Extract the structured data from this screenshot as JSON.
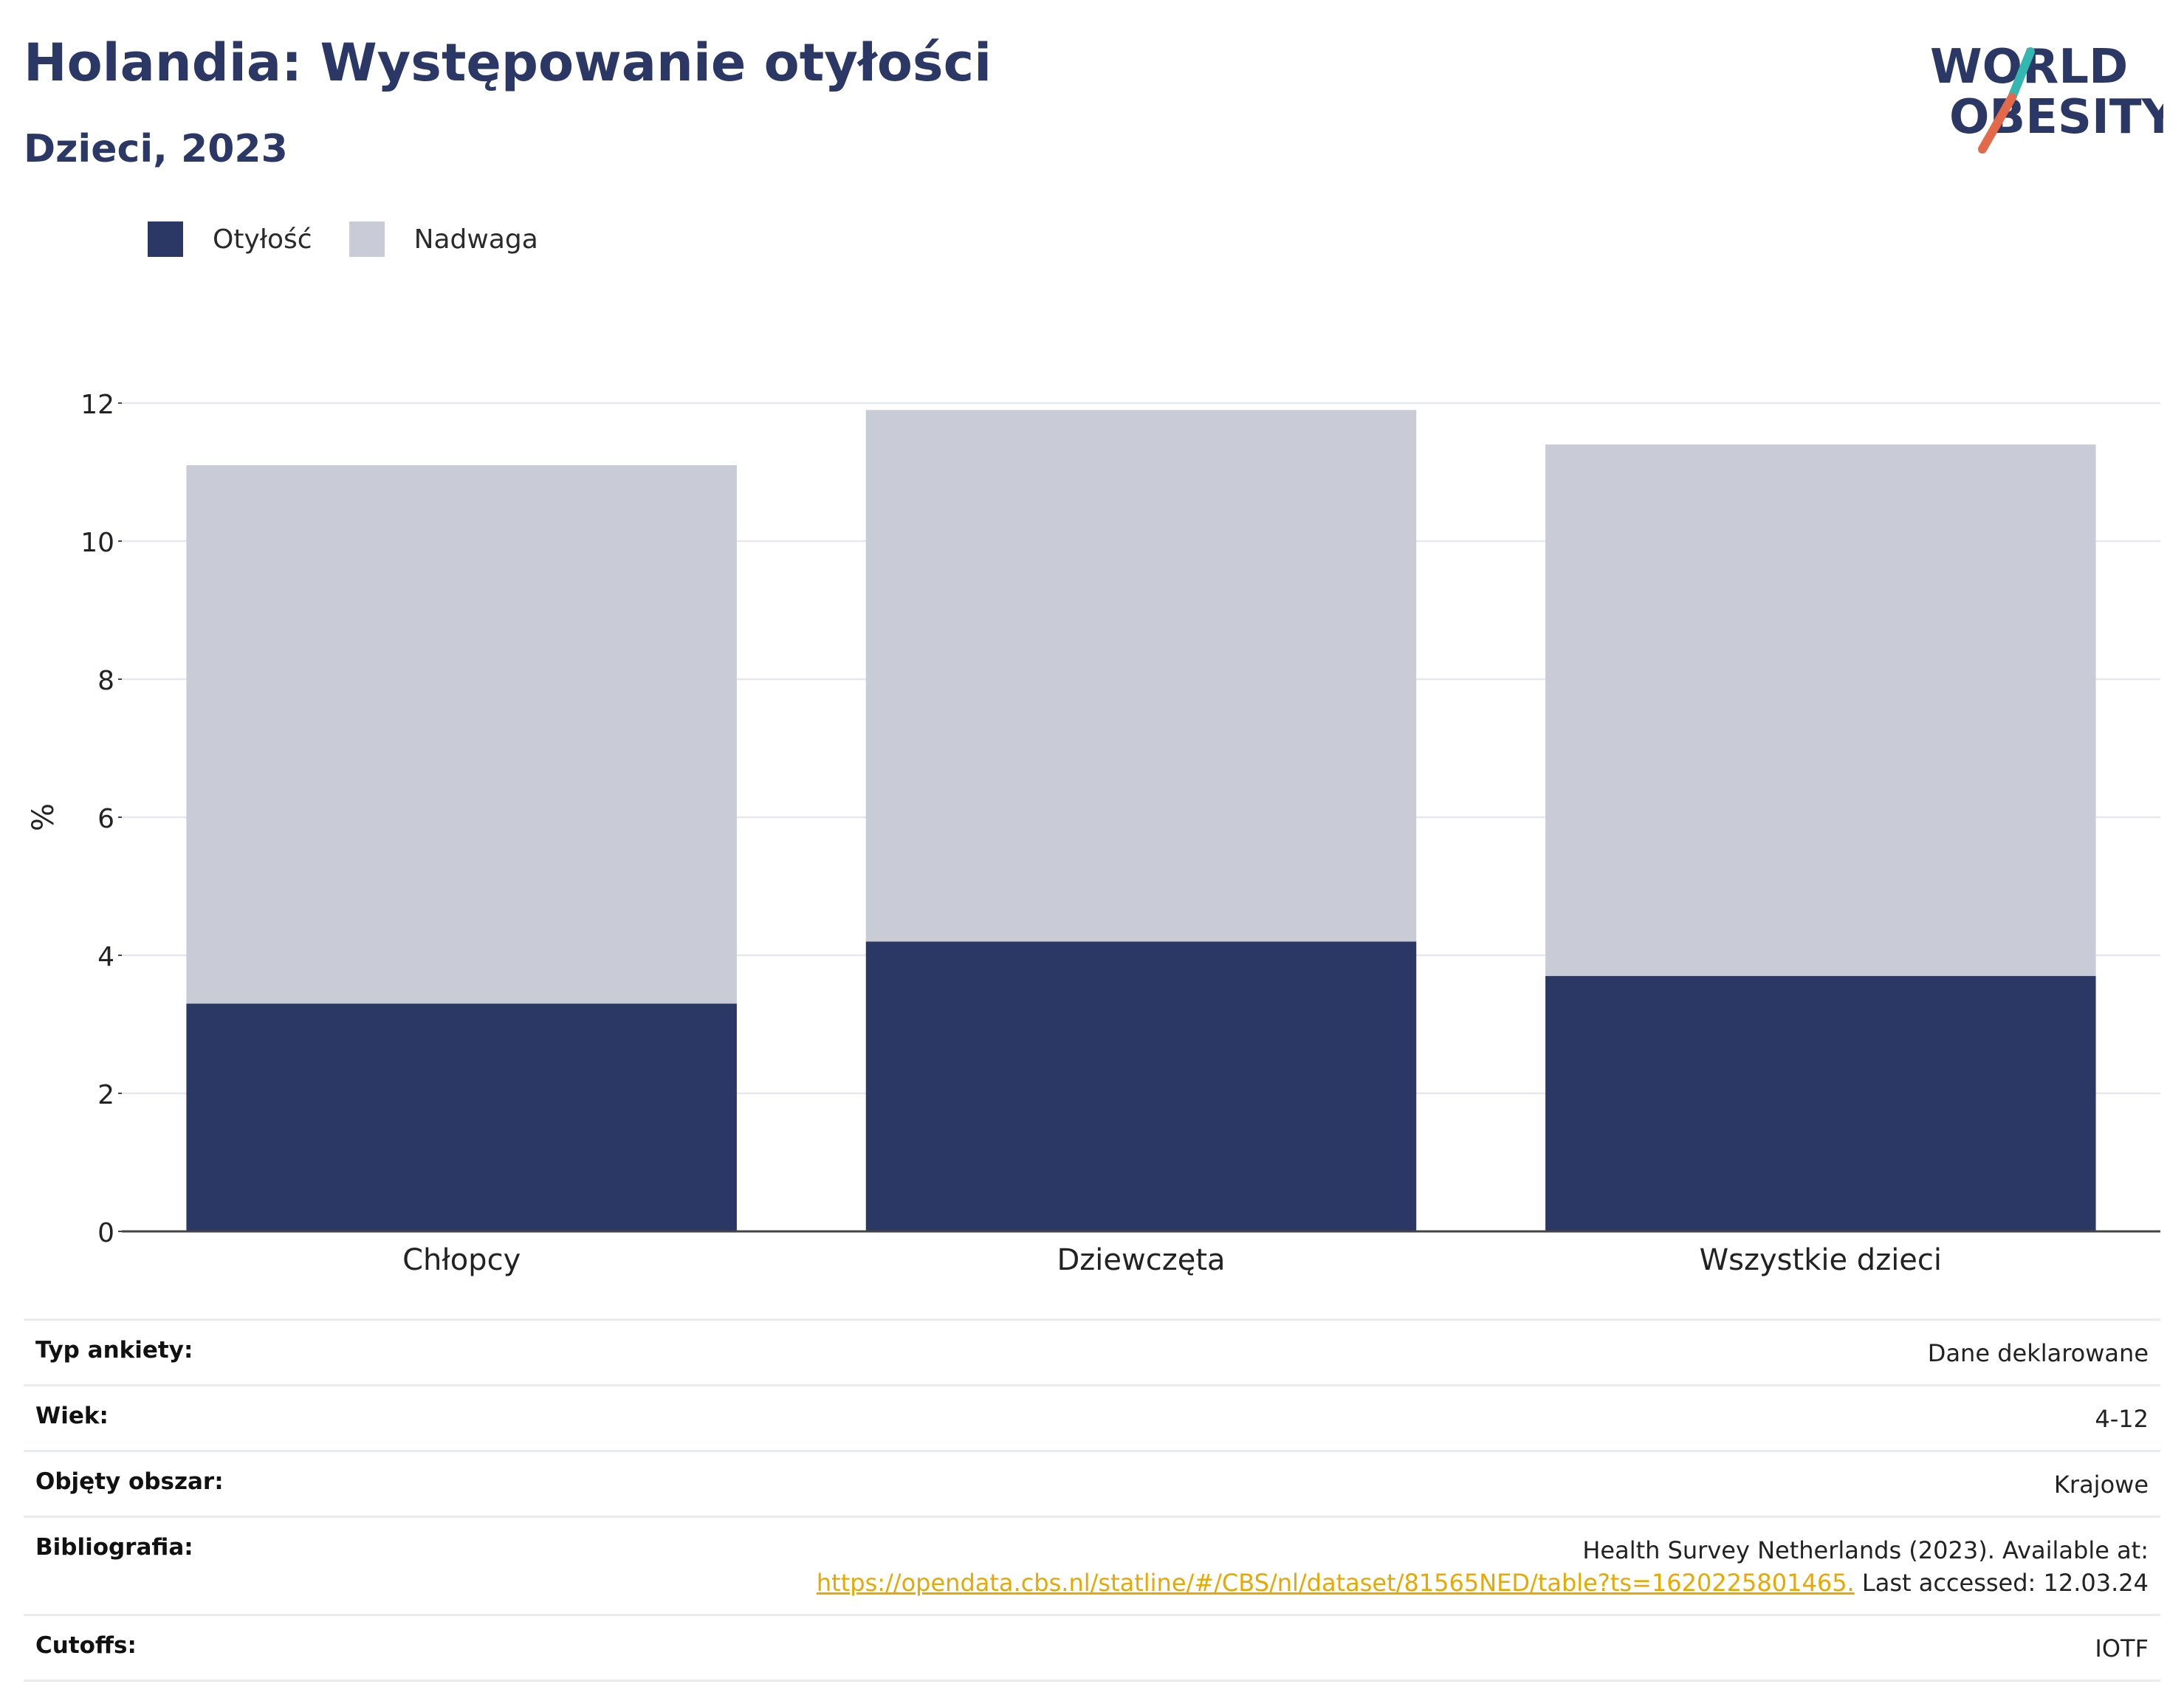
{
  "header": {
    "title": "Holandia: Występowanie otyłości",
    "subtitle": "Dzieci, 2023"
  },
  "logo": {
    "line1": "WORLD",
    "line2": "OBESITY",
    "slash_colors": [
      "#34b7b0",
      "#e4694a"
    ],
    "text_color": "#2b3765"
  },
  "legend": [
    {
      "label": "Otyłość",
      "color": "#2b3765"
    },
    {
      "label": "Nadwaga",
      "color": "#c9cbd6"
    }
  ],
  "chart_data": {
    "type": "bar",
    "stacked": true,
    "title": "Holandia: Występowanie otyłości",
    "subtitle": "Dzieci, 2023",
    "categories": [
      "Chłopcy",
      "Dziewczęta",
      "Wszystkie dzieci"
    ],
    "series": [
      {
        "name": "Otyłość",
        "color": "#2b3765",
        "values": [
          3.3,
          4.2,
          3.7
        ]
      },
      {
        "name": "Nadwaga",
        "color": "#c9cbd6",
        "values": [
          7.8,
          7.7,
          7.7
        ]
      }
    ],
    "ylabel": "%",
    "xlabel": "",
    "ylim": [
      0,
      12
    ],
    "yticks": [
      0,
      2,
      4,
      6,
      8,
      10,
      12
    ],
    "grid": true,
    "legend_position": "top-left"
  },
  "meta": [
    {
      "label": "Typ ankiety:",
      "value": "Dane deklarowane"
    },
    {
      "label": "Wiek:",
      "value": "4-12"
    },
    {
      "label": "Objęty obszar:",
      "value": "Krajowe"
    },
    {
      "label": "Bibliografia:",
      "value_line1": "Health Survey Netherlands (2023). Available at:",
      "link": "https://opendata.cbs.nl/statline/#/CBS/nl/dataset/81565NED/table?ts=1620225801465.",
      "value_tail": " Last accessed: 12.03.24"
    },
    {
      "label": "Cutoffs:",
      "value": "IOTF"
    }
  ]
}
